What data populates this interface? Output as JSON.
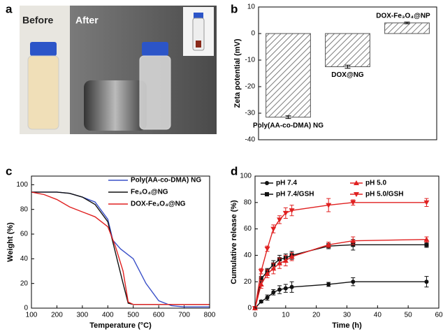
{
  "photo": {
    "panel_label": "a",
    "before": "Before",
    "after": "After"
  },
  "chart_data": [
    {
      "type": "bar",
      "panel_label": "b",
      "ylabel": "Zeta potential (mV)",
      "categories": [
        "Poly(AA-co-DMA) NG",
        "DOX@NG",
        "DOX-Fe₃O₄@NP"
      ],
      "values": [
        -31.5,
        -12.5,
        4
      ],
      "errors": [
        0.5,
        0.6,
        0.3
      ],
      "color": "#555555",
      "ylim": [
        -40,
        10
      ],
      "yticks": [
        -40,
        -30,
        -20,
        -10,
        0,
        10
      ]
    },
    {
      "type": "line",
      "panel_label": "c",
      "xlabel": "Temperature (°C)",
      "ylabel": "Weight (%)",
      "xlim": [
        100,
        800
      ],
      "xticks": [
        100,
        200,
        300,
        400,
        500,
        600,
        700,
        800
      ],
      "ylim": [
        0,
        107
      ],
      "yticks": [
        0,
        20,
        40,
        60,
        80,
        100
      ],
      "series": [
        {
          "name": "Poly(AA-co-DMA) NG",
          "color": "#3a50c8",
          "x": [
            100,
            200,
            250,
            300,
            350,
            400,
            420,
            450,
            500,
            550,
            600,
            650,
            700,
            750,
            800
          ],
          "values": [
            94,
            94,
            93,
            90,
            86,
            72,
            55,
            48,
            40,
            20,
            6,
            2,
            1,
            1,
            1
          ]
        },
        {
          "name": "Fe₃O₄@NG",
          "color": "#111111",
          "x": [
            100,
            200,
            250,
            300,
            350,
            400,
            430,
            460,
            480,
            500,
            600,
            700,
            800
          ],
          "values": [
            94,
            94,
            93,
            90,
            84,
            70,
            45,
            20,
            4,
            3,
            3,
            3,
            3
          ]
        },
        {
          "name": "DOX-Fe₃O₄@NG",
          "color": "#e02020",
          "x": [
            100,
            150,
            200,
            250,
            300,
            350,
            400,
            430,
            460,
            480,
            500,
            600,
            700,
            800
          ],
          "values": [
            94,
            92,
            88,
            82,
            78,
            74,
            66,
            50,
            30,
            5,
            3,
            3,
            3,
            3
          ]
        }
      ]
    },
    {
      "type": "line",
      "panel_label": "d",
      "xlabel": "Time (h)",
      "ylabel": "Cumulative release (%)",
      "xlim": [
        0,
        60
      ],
      "xticks": [
        0,
        10,
        20,
        30,
        40,
        50,
        60
      ],
      "ylim": [
        0,
        100
      ],
      "yticks": [
        0,
        20,
        40,
        60,
        80,
        100
      ],
      "series": [
        {
          "name": "pH 7.4",
          "color": "#111111",
          "marker": "circle",
          "x": [
            0,
            2,
            4,
            6,
            8,
            10,
            12,
            24,
            32,
            56
          ],
          "values": [
            0,
            5,
            8,
            12,
            14,
            15,
            16,
            18,
            20,
            20
          ],
          "errors": [
            0,
            1,
            2,
            2,
            3,
            3,
            4,
            1.5,
            3,
            4
          ]
        },
        {
          "name": "pH 7.4/GSH",
          "color": "#111111",
          "marker": "square",
          "x": [
            0,
            2,
            4,
            6,
            8,
            10,
            12,
            24,
            32,
            56
          ],
          "values": [
            0,
            22,
            28,
            33,
            37,
            38,
            40,
            47,
            48,
            48
          ],
          "errors": [
            0,
            2,
            2,
            3,
            3,
            3,
            3,
            2,
            4,
            2
          ]
        },
        {
          "name": "pH 5.0",
          "color": "#e02020",
          "marker": "triangle-up",
          "x": [
            0,
            2,
            4,
            6,
            8,
            10,
            12,
            24,
            32,
            56
          ],
          "values": [
            0,
            18,
            26,
            30,
            34,
            36,
            39,
            48,
            51,
            52
          ],
          "errors": [
            0,
            3,
            3,
            4,
            4,
            4,
            3,
            2,
            3,
            2
          ]
        },
        {
          "name": "pH 5.0/GSH",
          "color": "#e02020",
          "marker": "triangle-down",
          "x": [
            0,
            2,
            4,
            6,
            8,
            10,
            12,
            24,
            32,
            56
          ],
          "values": [
            0,
            28,
            45,
            60,
            67,
            72,
            74,
            78,
            80,
            80
          ],
          "errors": [
            0,
            2,
            2,
            3,
            3,
            4,
            4,
            5,
            2,
            3
          ]
        }
      ]
    }
  ]
}
